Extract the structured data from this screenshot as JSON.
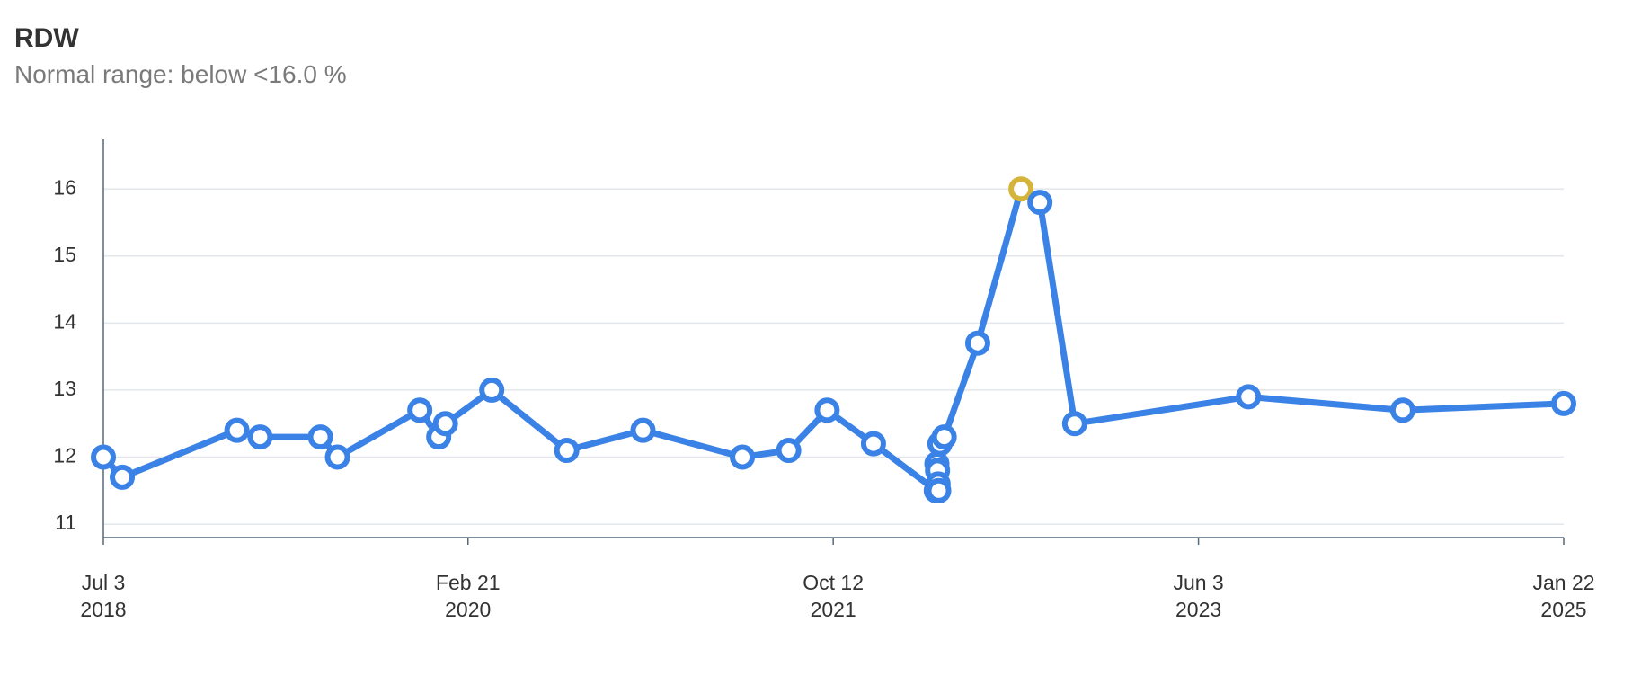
{
  "chart_data": {
    "type": "line",
    "title": "RDW",
    "subtitle": "Normal range: below <16.0 %",
    "x": [
      "2018-07-03",
      "2018-08-03",
      "2019-02-07",
      "2019-03-17",
      "2019-06-24",
      "2019-07-22",
      "2019-12-04",
      "2020-01-04",
      "2020-01-15",
      "2020-03-31",
      "2020-08-01",
      "2020-12-04",
      "2021-05-16",
      "2021-07-31",
      "2021-10-02",
      "2021-12-17",
      "2022-03-30",
      "2022-03-31",
      "2022-04-01",
      "2022-04-02",
      "2022-04-03",
      "2022-04-05",
      "2022-04-12",
      "2022-06-06",
      "2022-08-16",
      "2022-09-16",
      "2022-11-12",
      "2023-08-24",
      "2024-05-03",
      "2025-01-22"
    ],
    "series": [
      {
        "color": "#3b82e6",
        "values": [
          12.0,
          11.7,
          12.4,
          12.3,
          12.3,
          12.0,
          12.7,
          12.3,
          12.5,
          13.0,
          12.1,
          12.4,
          12.0,
          12.1,
          12.7,
          12.2,
          11.5,
          11.9,
          11.8,
          11.6,
          11.5,
          12.2,
          12.3,
          13.7,
          16.0,
          15.8,
          12.5,
          12.9,
          12.7,
          12.8
        ],
        "marker_colors": [
          "#3b82e6",
          "#3b82e6",
          "#3b82e6",
          "#3b82e6",
          "#3b82e6",
          "#3b82e6",
          "#3b82e6",
          "#3b82e6",
          "#3b82e6",
          "#3b82e6",
          "#3b82e6",
          "#3b82e6",
          "#3b82e6",
          "#3b82e6",
          "#3b82e6",
          "#3b82e6",
          "#3b82e6",
          "#3b82e6",
          "#3b82e6",
          "#3b82e6",
          "#3b82e6",
          "#3b82e6",
          "#3b82e6",
          "#3b82e6",
          "#d4b43a",
          "#3b82e6",
          "#3b82e6",
          "#3b82e6",
          "#3b82e6",
          "#3b82e6"
        ]
      }
    ],
    "xlim": [
      "2018-07-03",
      "2025-01-22"
    ],
    "xticks": [
      {
        "value": "2018-07-03",
        "label": "Jul 3\n2018"
      },
      {
        "value": "2020-02-21",
        "label": "Feb 21\n2020"
      },
      {
        "value": "2021-10-12",
        "label": "Oct 12\n2021"
      },
      {
        "value": "2023-06-03",
        "label": "Jun 3\n2023"
      },
      {
        "value": "2025-01-22",
        "label": "Jan 22\n2025"
      }
    ],
    "ylim": [
      10.8,
      16.7
    ],
    "yticks": [
      11,
      12,
      13,
      14,
      15,
      16
    ],
    "grid": true
  }
}
